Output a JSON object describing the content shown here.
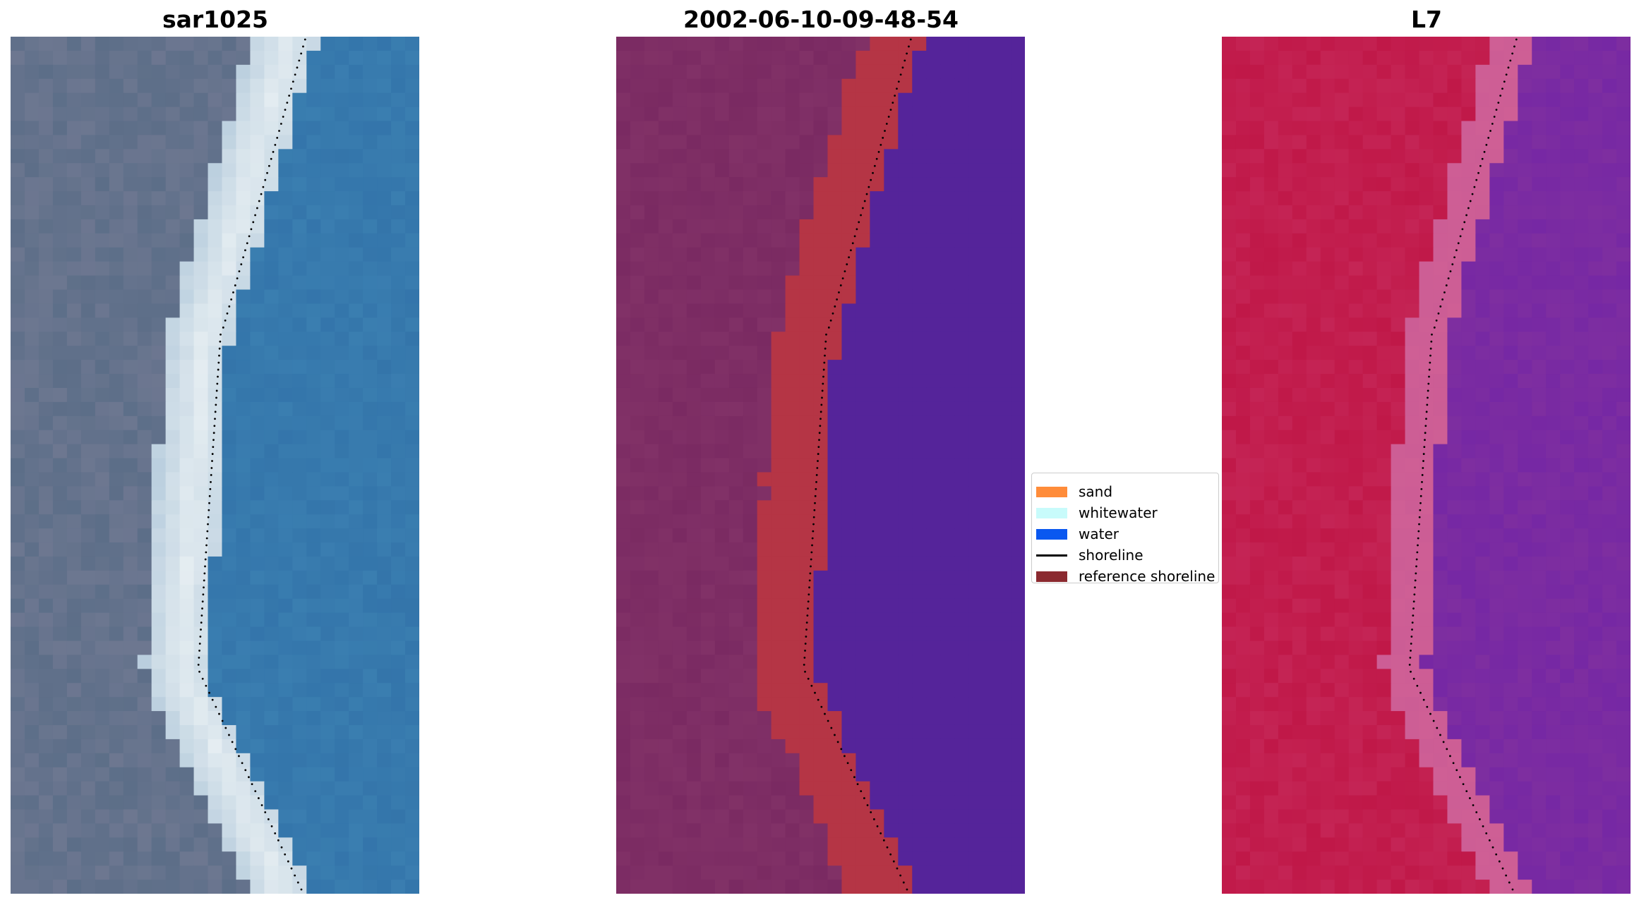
{
  "figure": {
    "panels": [
      {
        "title": "sar1025",
        "kind": "rgb"
      },
      {
        "title": "2002-06-10-09-48-54",
        "kind": "classified"
      },
      {
        "title": "L7",
        "kind": "false-color"
      }
    ]
  },
  "legend": {
    "items": [
      {
        "label": "sand",
        "color": "#ff8c3a",
        "type": "patch"
      },
      {
        "label": "whitewater",
        "color": "#c8fbfb",
        "type": "patch"
      },
      {
        "label": "water",
        "color": "#0a58f0",
        "type": "patch"
      },
      {
        "label": "shoreline",
        "color": "#000000",
        "type": "line"
      },
      {
        "label": "reference shoreline",
        "color": "#8b2a30",
        "type": "patch"
      }
    ]
  },
  "colors": {
    "rgb_water": "#3a7eb0",
    "rgb_land": "#5c6e88",
    "rgb_beach": "#e6eef2",
    "class_land": "#7a2a62",
    "class_sand": "#b53545",
    "class_water": "#55249a",
    "fc_land": "#c01848",
    "fc_beach": "#cf5f95",
    "fc_water": "#7e2ea0"
  }
}
